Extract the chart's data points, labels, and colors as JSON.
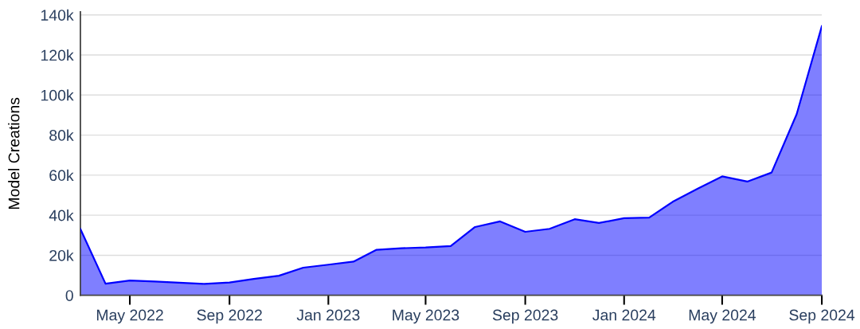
{
  "chart_data": {
    "type": "area",
    "ylabel": "Model Creations",
    "x": [
      "2022-03",
      "2022-04",
      "2022-05",
      "2022-06",
      "2022-07",
      "2022-08",
      "2022-09",
      "2022-10",
      "2022-11",
      "2022-12",
      "2023-01",
      "2023-02",
      "2023-03",
      "2023-04",
      "2023-05",
      "2023-06",
      "2023-07",
      "2023-08",
      "2023-09",
      "2023-10",
      "2023-11",
      "2023-12",
      "2024-01",
      "2024-02",
      "2024-03",
      "2024-04",
      "2024-05",
      "2024-06",
      "2024-07",
      "2024-08",
      "2024-09"
    ],
    "series": [
      {
        "color": "#0000ff",
        "values": [
          33100,
          5800,
          7400,
          6900,
          6300,
          5700,
          6400,
          8200,
          9800,
          13800,
          15300,
          16800,
          22700,
          23500,
          23900,
          24600,
          34100,
          36900,
          31700,
          33200,
          38000,
          36100,
          38500,
          38800,
          46700,
          53300,
          59400,
          56800,
          61300,
          90500,
          134400
        ]
      }
    ],
    "xlim": [
      "2022-03",
      "2024-09"
    ],
    "xticks": [
      {
        "value": "2022-05",
        "label": "May 2022"
      },
      {
        "value": "2022-09",
        "label": "Sep 2022"
      },
      {
        "value": "2023-01",
        "label": "Jan 2023"
      },
      {
        "value": "2023-05",
        "label": "May 2023"
      },
      {
        "value": "2023-09",
        "label": "Sep 2023"
      },
      {
        "value": "2024-01",
        "label": "Jan 2024"
      },
      {
        "value": "2024-05",
        "label": "May 2024"
      },
      {
        "value": "2024-09",
        "label": "Sep 2024"
      }
    ],
    "ylim": [
      0,
      141500
    ],
    "yticks": [
      0,
      {
        "value": 20000,
        "label": "20k"
      },
      {
        "value": 40000,
        "label": "40k"
      },
      {
        "value": 60000,
        "label": "60k"
      },
      {
        "value": 80000,
        "label": "80k"
      },
      {
        "value": 100000,
        "label": "100k"
      },
      {
        "value": 120000,
        "label": "120k"
      },
      {
        "value": 140000,
        "label": "140k"
      }
    ],
    "grid": "y"
  }
}
